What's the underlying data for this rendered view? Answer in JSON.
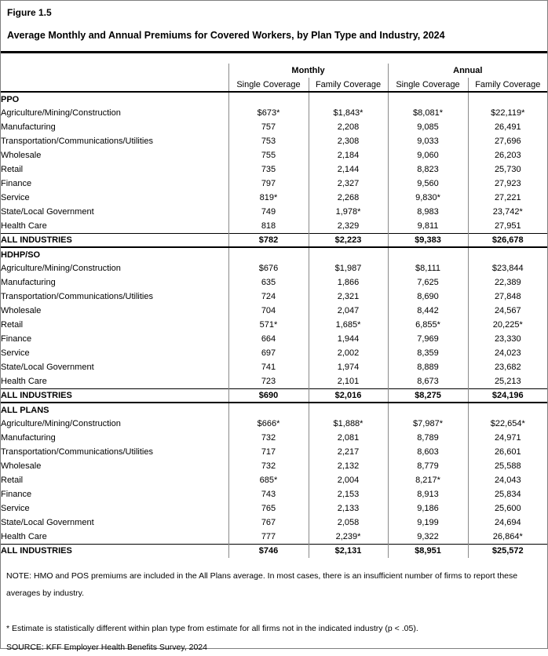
{
  "figure_label": "Figure 1.5",
  "title": "Average Monthly and Annual Premiums for Covered Workers, by Plan Type and Industry, 2024",
  "table": {
    "column_groups": {
      "monthly": "Monthly",
      "annual": "Annual"
    },
    "columns": {
      "monthly_single": "Single Coverage",
      "monthly_family": "Family Coverage",
      "annual_single": "Single Coverage",
      "annual_family": "Family Coverage"
    },
    "sections": [
      {
        "label": "PPO",
        "rows": [
          {
            "industry": "Agriculture/Mining/Construction",
            "values": [
              "$673*",
              "$1,843*",
              "$8,081*",
              "$22,119*"
            ]
          },
          {
            "industry": "Manufacturing",
            "values": [
              "757",
              "2,208",
              "9,085",
              "26,491"
            ]
          },
          {
            "industry": "Transportation/Communications/Utilities",
            "values": [
              "753",
              "2,308",
              "9,033",
              "27,696"
            ]
          },
          {
            "industry": "Wholesale",
            "values": [
              "755",
              "2,184",
              "9,060",
              "26,203"
            ]
          },
          {
            "industry": "Retail",
            "values": [
              "735",
              "2,144",
              "8,823",
              "25,730"
            ]
          },
          {
            "industry": "Finance",
            "values": [
              "797",
              "2,327",
              "9,560",
              "27,923"
            ]
          },
          {
            "industry": "Service",
            "values": [
              "819*",
              "2,268",
              "9,830*",
              "27,221"
            ]
          },
          {
            "industry": "State/Local Government",
            "values": [
              "749",
              "1,978*",
              "8,983",
              "23,742*"
            ]
          },
          {
            "industry": "Health Care",
            "values": [
              "818",
              "2,329",
              "9,811",
              "27,951"
            ]
          }
        ],
        "total": {
          "label": "ALL INDUSTRIES",
          "values": [
            "$782",
            "$2,223",
            "$9,383",
            "$26,678"
          ]
        }
      },
      {
        "label": "HDHP/SO",
        "rows": [
          {
            "industry": "Agriculture/Mining/Construction",
            "values": [
              "$676",
              "$1,987",
              "$8,111",
              "$23,844"
            ]
          },
          {
            "industry": "Manufacturing",
            "values": [
              "635",
              "1,866",
              "7,625",
              "22,389"
            ]
          },
          {
            "industry": "Transportation/Communications/Utilities",
            "values": [
              "724",
              "2,321",
              "8,690",
              "27,848"
            ]
          },
          {
            "industry": "Wholesale",
            "values": [
              "704",
              "2,047",
              "8,442",
              "24,567"
            ]
          },
          {
            "industry": "Retail",
            "values": [
              "571*",
              "1,685*",
              "6,855*",
              "20,225*"
            ]
          },
          {
            "industry": "Finance",
            "values": [
              "664",
              "1,944",
              "7,969",
              "23,330"
            ]
          },
          {
            "industry": "Service",
            "values": [
              "697",
              "2,002",
              "8,359",
              "24,023"
            ]
          },
          {
            "industry": "State/Local Government",
            "values": [
              "741",
              "1,974",
              "8,889",
              "23,682"
            ]
          },
          {
            "industry": "Health Care",
            "values": [
              "723",
              "2,101",
              "8,673",
              "25,213"
            ]
          }
        ],
        "total": {
          "label": "ALL INDUSTRIES",
          "values": [
            "$690",
            "$2,016",
            "$8,275",
            "$24,196"
          ]
        }
      },
      {
        "label": "ALL PLANS",
        "rows": [
          {
            "industry": "Agriculture/Mining/Construction",
            "values": [
              "$666*",
              "$1,888*",
              "$7,987*",
              "$22,654*"
            ]
          },
          {
            "industry": "Manufacturing",
            "values": [
              "732",
              "2,081",
              "8,789",
              "24,971"
            ]
          },
          {
            "industry": "Transportation/Communications/Utilities",
            "values": [
              "717",
              "2,217",
              "8,603",
              "26,601"
            ]
          },
          {
            "industry": "Wholesale",
            "values": [
              "732",
              "2,132",
              "8,779",
              "25,588"
            ]
          },
          {
            "industry": "Retail",
            "values": [
              "685*",
              "2,004",
              "8,217*",
              "24,043"
            ]
          },
          {
            "industry": "Finance",
            "values": [
              "743",
              "2,153",
              "8,913",
              "25,834"
            ]
          },
          {
            "industry": "Service",
            "values": [
              "765",
              "2,133",
              "9,186",
              "25,600"
            ]
          },
          {
            "industry": "State/Local Government",
            "values": [
              "767",
              "2,058",
              "9,199",
              "24,694"
            ]
          },
          {
            "industry": "Health Care",
            "values": [
              "777",
              "2,239*",
              "9,322",
              "26,864*"
            ]
          }
        ],
        "total": {
          "label": "ALL INDUSTRIES",
          "values": [
            "$746",
            "$2,131",
            "$8,951",
            "$25,572"
          ]
        }
      }
    ]
  },
  "notes": {
    "note": "NOTE: HMO and POS premiums are included in the All Plans average. In most cases, there is an insufficient number of firms to report these averages by industry.",
    "asterisk": "* Estimate is statistically different within plan type from estimate for all firms not in the indicated industry (p < .05).",
    "source": "SOURCE: KFF Employer Health Benefits Survey, 2024"
  },
  "colors": {
    "background": "#ffffff",
    "text": "#000000",
    "vertical_rule": "#8a8a8a",
    "horizontal_rule": "#000000"
  }
}
